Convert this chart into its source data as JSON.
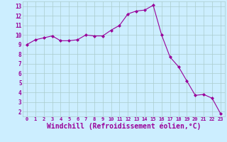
{
  "x": [
    0,
    1,
    2,
    3,
    4,
    5,
    6,
    7,
    8,
    9,
    10,
    11,
    12,
    13,
    14,
    15,
    16,
    17,
    18,
    19,
    20,
    21,
    22,
    23
  ],
  "y": [
    9.0,
    9.5,
    9.7,
    9.9,
    9.4,
    9.4,
    9.5,
    10.0,
    9.9,
    9.9,
    10.5,
    11.0,
    12.2,
    12.5,
    12.6,
    13.1,
    10.0,
    7.7,
    6.7,
    5.2,
    3.7,
    3.8,
    3.4,
    1.8
  ],
  "line_color": "#990099",
  "marker": "D",
  "marker_size": 2.0,
  "bg_color": "#cceeff",
  "grid_color": "#aacccc",
  "tick_color": "#990099",
  "label_color": "#990099",
  "xlabel": "Windchill (Refroidissement éolien,°C)",
  "xlabel_fontsize": 7,
  "ytick_min": 2,
  "ytick_max": 13,
  "xtick_labels": [
    "0",
    "1",
    "2",
    "3",
    "4",
    "5",
    "6",
    "7",
    "8",
    "9",
    "10",
    "11",
    "12",
    "13",
    "14",
    "15",
    "16",
    "17",
    "18",
    "19",
    "20",
    "21",
    "22",
    "23"
  ],
  "ylim": [
    1.5,
    13.5
  ],
  "xlim": [
    -0.5,
    23.5
  ]
}
